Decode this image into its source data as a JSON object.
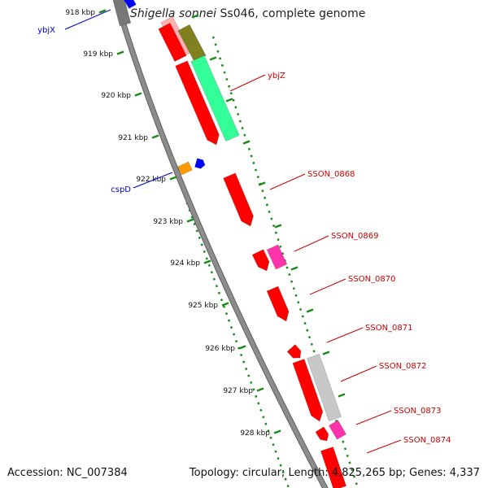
{
  "title": {
    "organism": "Shigella sonnei",
    "suffix": " Ss046, complete genome"
  },
  "footer": {
    "accession": "Accession: NC_007384",
    "summary": "Topology: circular; Length: 4,825,265 bp; Genes: 4,337"
  },
  "ticks": [
    {
      "label": "918 kbp"
    },
    {
      "label": "919 kbp"
    },
    {
      "label": "920 kbp"
    },
    {
      "label": "921 kbp"
    },
    {
      "label": "922 kbp"
    },
    {
      "label": "923 kbp"
    },
    {
      "label": "924 kbp"
    },
    {
      "label": "925 kbp"
    },
    {
      "label": "926 kbp"
    },
    {
      "label": "927 kbp"
    },
    {
      "label": "928 kbp"
    }
  ],
  "gene_labels": [
    {
      "name": "ybjX",
      "color": "#0000cc"
    },
    {
      "name": "ybjZ",
      "color": "#cc0000"
    },
    {
      "name": "cspD",
      "color": "#0000cc"
    },
    {
      "name": "SSON_0868",
      "color": "#cc0000"
    },
    {
      "name": "SSON_0869",
      "color": "#cc0000"
    },
    {
      "name": "SSON_0870",
      "color": "#cc0000"
    },
    {
      "name": "SSON_0871",
      "color": "#cc0000"
    },
    {
      "name": "SSON_0872",
      "color": "#cc0000"
    },
    {
      "name": "SSON_0873",
      "color": "#cc0000"
    },
    {
      "name": "SSON_0874",
      "color": "#cc0000"
    }
  ],
  "colors": {
    "backbone": "#8c8c8c",
    "tick_dots": "#1a8a1a",
    "gene_red": "#ff0000",
    "gene_green": "#33ff99",
    "gene_olive": "#808020",
    "gene_pink": "#ff33aa",
    "gene_gray": "#c8c8c8",
    "gene_blue": "#0000ff",
    "gene_orange": "#ff9900"
  }
}
